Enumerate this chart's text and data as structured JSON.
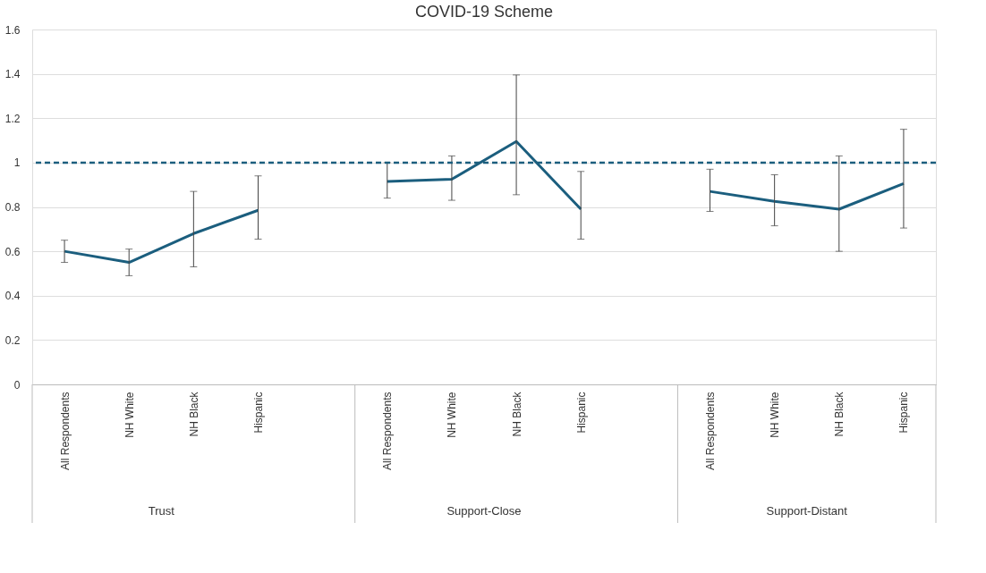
{
  "chart_data": {
    "type": "line",
    "title": "COVID-19 Scheme",
    "categories": [
      "All Respondents",
      "NH White",
      "NH Black",
      "Hispanic",
      null,
      "All Respondents",
      "NH White",
      "NH Black",
      "Hispanic",
      null,
      "All Respondents",
      "NH White",
      "NH Black",
      "Hispanic"
    ],
    "series": [
      {
        "color": "#1b5e7e",
        "values": [
          0.6,
          0.55,
          0.68,
          0.785,
          null,
          0.915,
          0.925,
          1.095,
          0.79,
          null,
          0.87,
          0.825,
          0.79,
          0.905
        ],
        "errors": [
          [
            0.55,
            0.65
          ],
          [
            0.49,
            0.61
          ],
          [
            0.53,
            0.87
          ],
          [
            0.655,
            0.94
          ],
          null,
          [
            0.84,
            1.0
          ],
          [
            0.83,
            1.03
          ],
          [
            0.855,
            1.395
          ],
          [
            0.655,
            0.96
          ],
          null,
          [
            0.78,
            0.97
          ],
          [
            0.715,
            0.945
          ],
          [
            0.6,
            1.03
          ],
          [
            0.705,
            1.15
          ]
        ]
      }
    ],
    "annotations": [
      "Trust",
      "Support-Close",
      "Support-Distant"
    ],
    "ylim": [
      0,
      1.6
    ],
    "yticks": [
      0,
      0.2,
      0.4,
      0.6,
      0.8,
      1,
      1.2,
      1.4,
      1.6
    ],
    "ref_lines": [
      {
        "axis": "y",
        "value": 1,
        "color": "#1b5e7e",
        "line_style": "dashed"
      }
    ],
    "grid": "y",
    "legend": false,
    "marker": "none",
    "line_style": "solid"
  }
}
